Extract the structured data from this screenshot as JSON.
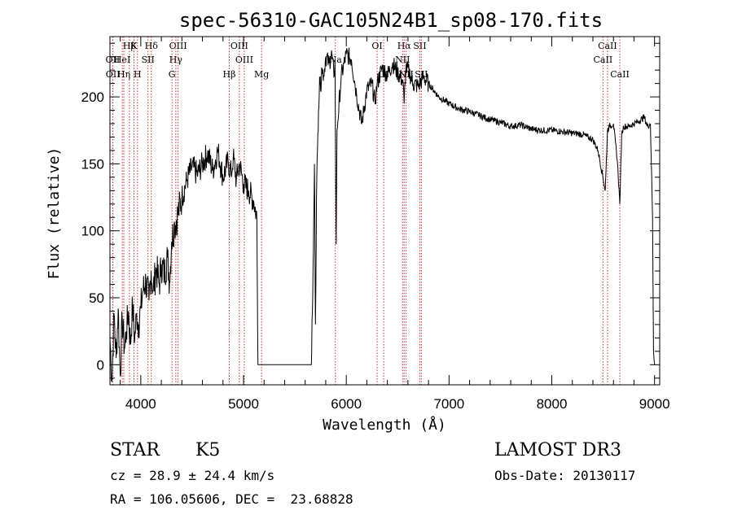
{
  "colors": {
    "axis": "#000000",
    "spectrum": "#000000",
    "lines": "#cc3333",
    "background": "#ffffff"
  },
  "chart_data": {
    "type": "line",
    "title": "spec-56310-GAC105N24B1_sp08-170.fits",
    "xlabel": "Wavelength (Å)",
    "ylabel": "Flux (relative)",
    "xlim": [
      3700,
      9050
    ],
    "ylim": [
      -15,
      245
    ],
    "xticks": [
      4000,
      5000,
      6000,
      7000,
      8000,
      9000
    ],
    "yticks": [
      0,
      50,
      100,
      150,
      200
    ],
    "series": [
      {
        "name": "spectrum",
        "x": [
          3700,
          3720,
          3740,
          3760,
          3780,
          3800,
          3820,
          3840,
          3860,
          3880,
          3900,
          3920,
          3940,
          3960,
          3980,
          4000,
          4020,
          4050,
          4080,
          4100,
          4120,
          4150,
          4180,
          4200,
          4230,
          4260,
          4280,
          4300,
          4330,
          4360,
          4400,
          4450,
          4500,
          4550,
          4600,
          4650,
          4700,
          4750,
          4800,
          4850,
          4880,
          4900,
          4930,
          4960,
          5000,
          5050,
          5100,
          5130,
          5140,
          5200,
          5300,
          5400,
          5500,
          5600,
          5660,
          5670,
          5680,
          5690,
          5700,
          5710,
          5720,
          5730,
          5740,
          5750,
          5760,
          5780,
          5800,
          5830,
          5860,
          5880,
          5890,
          5896,
          5902,
          5910,
          5950,
          6000,
          6050,
          6080,
          6100,
          6150,
          6200,
          6250,
          6280,
          6300,
          6350,
          6400,
          6450,
          6500,
          6550,
          6563,
          6580,
          6620,
          6650,
          6700,
          6750,
          6800,
          6850,
          6900,
          7000,
          7100,
          7200,
          7300,
          7400,
          7500,
          7600,
          7700,
          7800,
          7900,
          8000,
          8100,
          8200,
          8300,
          8400,
          8450,
          8498,
          8520,
          8542,
          8560,
          8600,
          8640,
          8662,
          8680,
          8700,
          8750,
          8800,
          8850,
          8900,
          8930,
          8960,
          8980,
          8990,
          9000
        ],
        "values": [
          20,
          -12,
          38,
          5,
          42,
          -8,
          35,
          12,
          25,
          40,
          15,
          45,
          18,
          38,
          30,
          42,
          55,
          62,
          48,
          70,
          55,
          72,
          60,
          75,
          68,
          80,
          62,
          92,
          105,
          112,
          125,
          138,
          148,
          142,
          150,
          158,
          145,
          160,
          140,
          152,
          142,
          155,
          138,
          150,
          135,
          130,
          122,
          110,
          0,
          0,
          0,
          0,
          0,
          0,
          0,
          40,
          85,
          150,
          30,
          125,
          162,
          190,
          215,
          205,
          222,
          216,
          230,
          225,
          232,
          215,
          228,
          150,
          90,
          175,
          215,
          232,
          228,
          212,
          202,
          180,
          205,
          210,
          195,
          210,
          222,
          216,
          225,
          218,
          212,
          195,
          222,
          217,
          210,
          208,
          215,
          210,
          205,
          200,
          195,
          191,
          189,
          186,
          183,
          181,
          178,
          179,
          176,
          175,
          175,
          174,
          173,
          172,
          168,
          160,
          140,
          130,
          175,
          178,
          180,
          150,
          120,
          172,
          178,
          178,
          180,
          182,
          185,
          178,
          180,
          110,
          10,
          0
        ]
      }
    ],
    "annotations": [
      {
        "label": "Hβ",
        "x": 3889,
        "row": 0
      },
      {
        "label": "K",
        "x": 3934,
        "row": 0
      },
      {
        "label": "Hδ",
        "x": 4102,
        "row": 0
      },
      {
        "label": "OIII",
        "x": 4363,
        "row": 0
      },
      {
        "label": "OIII",
        "x": 4959,
        "row": 0
      },
      {
        "label": "OI",
        "x": 6300,
        "row": 0
      },
      {
        "label": "Hα",
        "x": 6563,
        "row": 0
      },
      {
        "label": "SII",
        "x": 6716,
        "row": 0
      },
      {
        "label": "CaII",
        "x": 8542,
        "row": 0
      },
      {
        "label": "OII",
        "x": 3727,
        "row": 1
      },
      {
        "label": "HeI",
        "x": 3820,
        "row": 1
      },
      {
        "label": "SII",
        "x": 4070,
        "row": 1
      },
      {
        "label": "Hγ",
        "x": 4341,
        "row": 1
      },
      {
        "label": "OIII",
        "x": 5007,
        "row": 1
      },
      {
        "label": "Na",
        "x": 5893,
        "row": 1
      },
      {
        "label": "NII",
        "x": 6548,
        "row": 1
      },
      {
        "label": "CaII",
        "x": 8498,
        "row": 1
      },
      {
        "label": "OII",
        "x": 3729,
        "row": 2
      },
      {
        "label": "Hη",
        "x": 3835,
        "row": 2
      },
      {
        "label": "H",
        "x": 3968,
        "row": 2
      },
      {
        "label": "G",
        "x": 4304,
        "row": 2
      },
      {
        "label": "Hβ",
        "x": 4861,
        "row": 2
      },
      {
        "label": "Mg",
        "x": 5175,
        "row": 2
      },
      {
        "label": "OI",
        "x": 6364,
        "row": 2
      },
      {
        "label": "NII",
        "x": 6583,
        "row": 2
      },
      {
        "label": "SII",
        "x": 6731,
        "row": 2
      },
      {
        "label": "CaII",
        "x": 8662,
        "row": 2
      }
    ]
  },
  "info": {
    "type": "STAR",
    "subclass": "K5",
    "survey": "LAMOST DR3",
    "cz": "cz = 28.9 ± 24.4 km/s",
    "obs_date": "Obs-Date: 20130117",
    "coords": "RA = 106.05606, DEC =  23.68828"
  }
}
